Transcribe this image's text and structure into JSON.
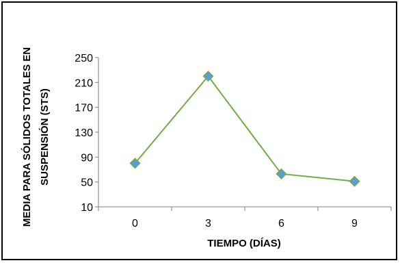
{
  "chart_data": {
    "type": "line",
    "title": "",
    "xlabel": "TIEMPO (DÍAS)",
    "ylabel_lines": [
      "MEDIA PARA SÓLIDOS TOTALES EN",
      "SUSPENSIÓN (STS)"
    ],
    "categories": [
      "0",
      "3",
      "6",
      "9"
    ],
    "y_ticks": [
      "10",
      "50",
      "90",
      "130",
      "170",
      "210",
      "250"
    ],
    "ylim": [
      10,
      250
    ],
    "grid": false,
    "legend": "none",
    "series": [
      {
        "values": [
          80,
          220,
          63,
          51
        ]
      }
    ],
    "colors": {
      "line": "#70ad47",
      "marker_fill": "#5b9bd5",
      "marker_edge": "#70ad47",
      "axis": "#808080"
    }
  }
}
